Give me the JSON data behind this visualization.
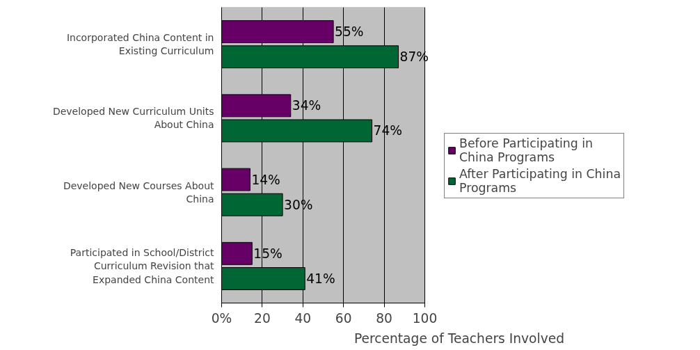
{
  "chart_data": {
    "type": "bar",
    "orientation": "horizontal",
    "xlabel": "Percentage of Teachers Involved",
    "categories": [
      "Incorporated China Content in Existing Curriculum",
      "Developed New Curriculum Units About China",
      "Developed New Courses About China",
      "Participated in School/District Curriculum Revision that Expanded China Content"
    ],
    "series": [
      {
        "name": "Before Participating in China Programs",
        "color": "#660066",
        "values": [
          55,
          34,
          14,
          15
        ],
        "value_labels": [
          "55%",
          "34%",
          "14%",
          "15%"
        ]
      },
      {
        "name": "After Participating in China Programs",
        "color": "#006633",
        "values": [
          87,
          74,
          30,
          41
        ],
        "value_labels": [
          "87%",
          "74%",
          "30%",
          "41%"
        ]
      }
    ],
    "xlim": [
      0,
      100
    ],
    "xticks": [
      {
        "value": 0,
        "label": "0%"
      },
      20,
      40,
      60,
      80,
      100
    ],
    "grid": "x",
    "legend": "right"
  }
}
